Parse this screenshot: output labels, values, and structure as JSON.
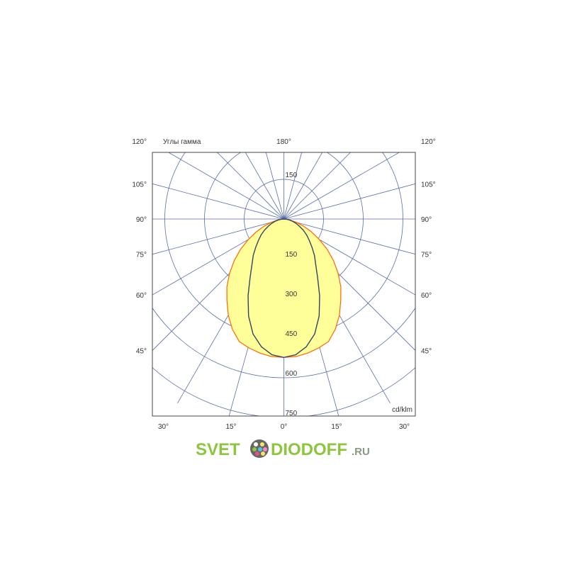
{
  "chart_data": {
    "type": "polar",
    "title": "Углы гамма",
    "unit_label": "cd/klm",
    "radial_ticks": [
      150,
      300,
      450,
      600,
      750
    ],
    "radial_tick_label_top": "150",
    "radial_max_shown": 750,
    "angle_step_deg": 15,
    "angle_labels": {
      "top": "180°",
      "left": [
        "120°",
        "105°",
        "90°",
        "75°",
        "60°",
        "45°"
      ],
      "right": [
        "120°",
        "105°",
        "90°",
        "75°",
        "60°",
        "45°"
      ],
      "bottom": [
        "30°",
        "15°",
        "0°",
        "15°",
        "30°"
      ]
    },
    "grid": true,
    "gamma_deg": [
      0,
      5,
      10,
      15,
      20,
      25,
      30,
      35,
      40,
      45,
      50,
      55,
      60,
      65,
      70,
      75,
      80,
      85,
      90
    ],
    "series": [
      {
        "values": [
          523,
          522,
          515,
          505,
          493,
          460,
          420,
          375,
          335,
          290,
          245,
          200,
          155,
          115,
          80,
          50,
          25,
          10,
          0
        ],
        "fill": "#ffff99",
        "stroke": "#ff6600"
      },
      {
        "values": [
          523,
          515,
          490,
          450,
          390,
          320,
          255,
          210,
          180,
          150,
          125,
          105,
          85,
          65,
          50,
          35,
          22,
          10,
          0
        ],
        "fill": "none",
        "stroke": "#334466"
      }
    ],
    "colors": {
      "grid": "#5a6ea8",
      "frame": "#444444"
    }
  },
  "watermark": {
    "part1": "SVET",
    "part2": "DIODOFF",
    "part3": ".RU",
    "color": "#8cc63f"
  }
}
